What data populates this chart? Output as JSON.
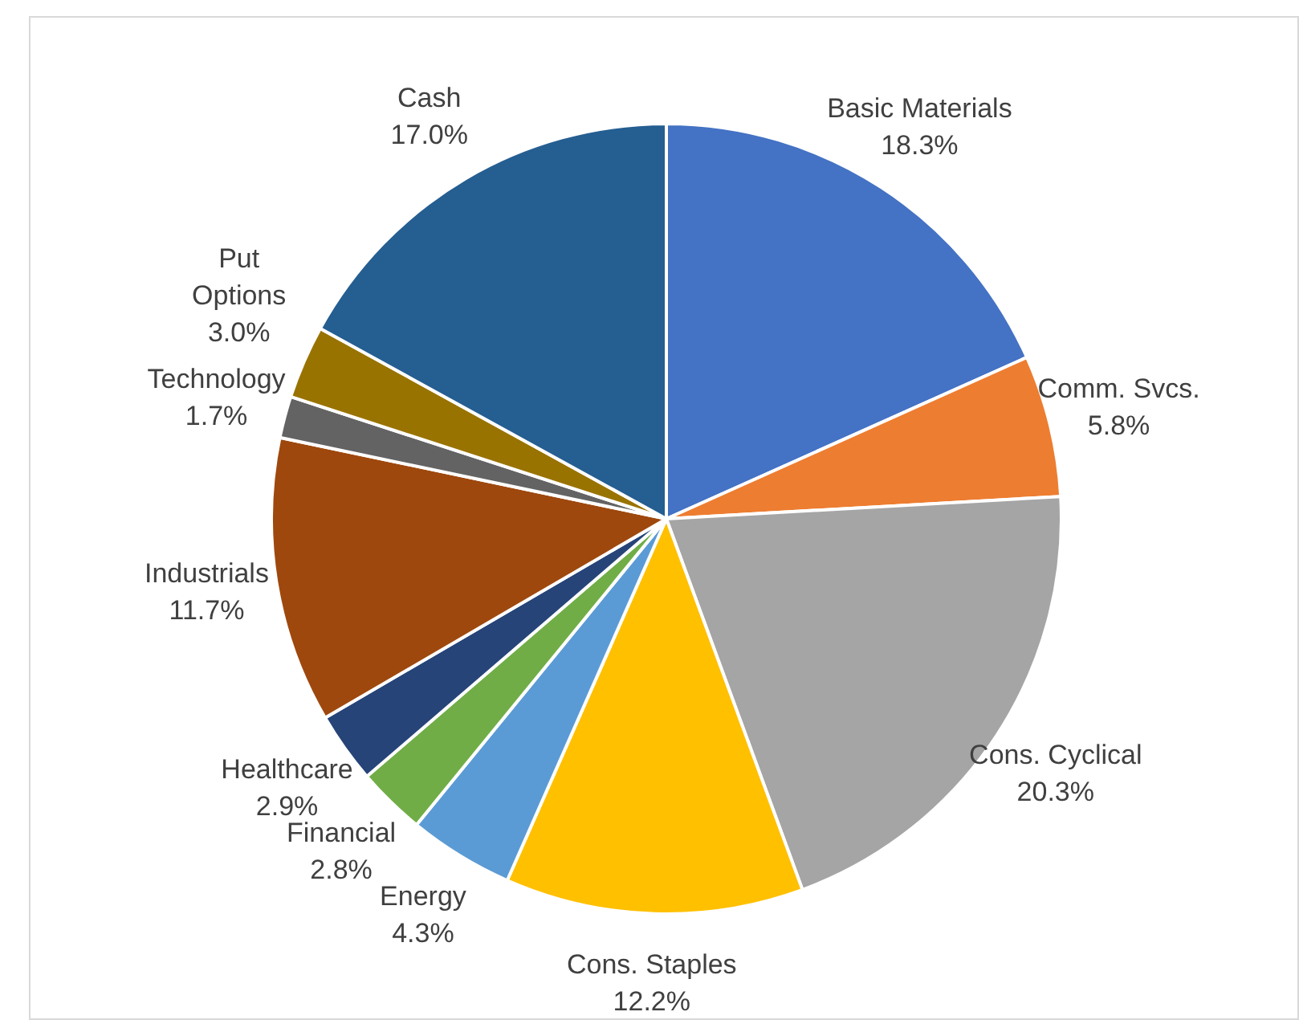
{
  "chart_data": {
    "type": "pie",
    "categories": [
      "Basic Materials",
      "Comm. Svcs.",
      "Cons. Cyclical",
      "Cons. Staples",
      "Energy",
      "Financial",
      "Healthcare",
      "Industrials",
      "Technology",
      "Put Options",
      "Cash"
    ],
    "values": [
      18.3,
      5.8,
      20.3,
      12.2,
      4.3,
      2.8,
      2.9,
      11.7,
      1.7,
      3.0,
      17.0
    ],
    "value_labels": [
      "18.3%",
      "5.8%",
      "20.3%",
      "12.2%",
      "4.3%",
      "2.8%",
      "2.9%",
      "11.7%",
      "1.7%",
      "3.0%",
      "17.0%"
    ],
    "colors": [
      "#4472c4",
      "#ed7d31",
      "#a5a5a5",
      "#ffc000",
      "#5b9bd5",
      "#70ad47",
      "#264478",
      "#9e480e",
      "#636363",
      "#997300",
      "#255e91"
    ],
    "legend": false
  }
}
